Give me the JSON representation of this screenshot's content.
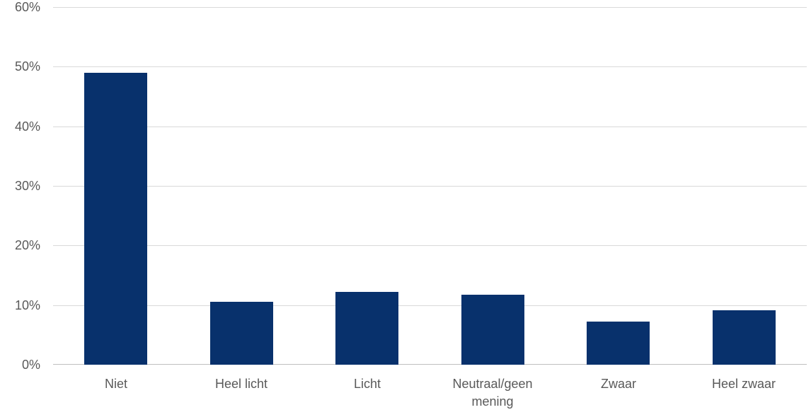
{
  "chart_data": {
    "type": "bar",
    "categories": [
      "Niet",
      "Heel licht",
      "Licht",
      "Neutraal/geen mening",
      "Zwaar",
      "Heel zwaar"
    ],
    "values": [
      49,
      10.6,
      12.2,
      11.7,
      7.2,
      9.1
    ],
    "title": "",
    "xlabel": "",
    "ylabel": "",
    "ylim": [
      0,
      60
    ],
    "ytick_step": 10,
    "ytick_labels": [
      "0%",
      "10%",
      "20%",
      "30%",
      "40%",
      "50%",
      "60%"
    ],
    "grid": true,
    "legend": false,
    "colors": {
      "bar": "#08316C",
      "gridline": "#D9D9D9",
      "axis_line": "#BFBFBF",
      "label_text": "#595959",
      "background": "#FFFFFF"
    }
  }
}
